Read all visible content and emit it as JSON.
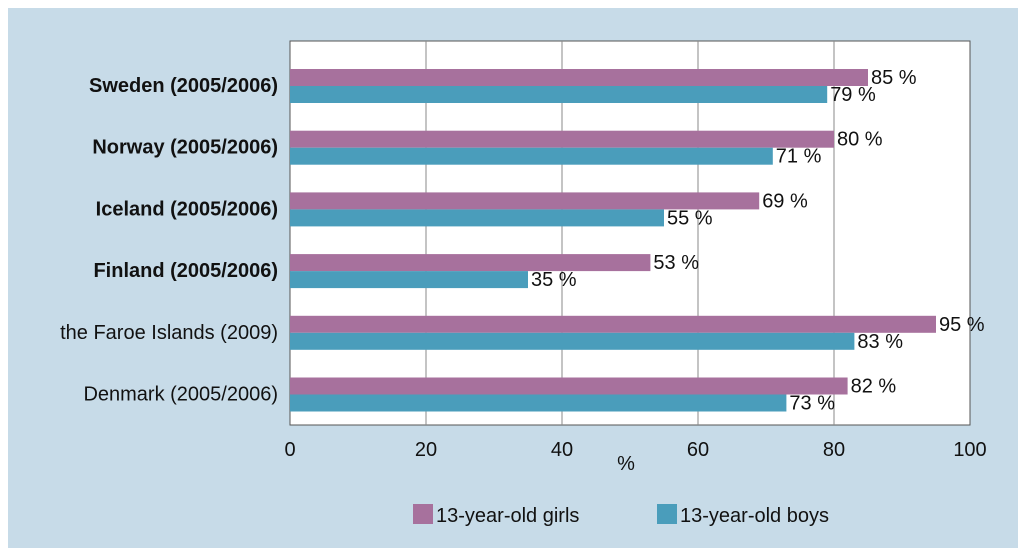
{
  "chart_data": {
    "type": "bar",
    "orientation": "horizontal",
    "categories": [
      "Sweden (2005/2006)",
      "Norway (2005/2006)",
      "Iceland (2005/2006)",
      "Finland (2005/2006)",
      "the Faroe Islands (2009)",
      "Denmark (2005/2006)"
    ],
    "bold_categories": [
      true,
      true,
      true,
      true,
      false,
      false
    ],
    "series": [
      {
        "name": "13-year-old girls",
        "color": "#a7719d",
        "values": [
          85,
          80,
          69,
          53,
          95,
          82
        ],
        "labels": [
          "85 %",
          "80 %",
          "69 %",
          "53 %",
          "95 %",
          "82 %"
        ]
      },
      {
        "name": "13-year-old boys",
        "color": "#4a9dbb",
        "values": [
          79,
          71,
          55,
          35,
          83,
          73
        ],
        "labels": [
          "79 %",
          "71 %",
          "55 %",
          "35 %",
          "83 %",
          "73 %"
        ]
      }
    ],
    "xlabel": "%",
    "xlim": [
      0,
      100
    ],
    "xticks": [
      0,
      20,
      40,
      60,
      80,
      100
    ],
    "grid": true,
    "legend_position": "bottom",
    "plot_background": "#ffffff",
    "frame_background": "#c7dbe8"
  }
}
